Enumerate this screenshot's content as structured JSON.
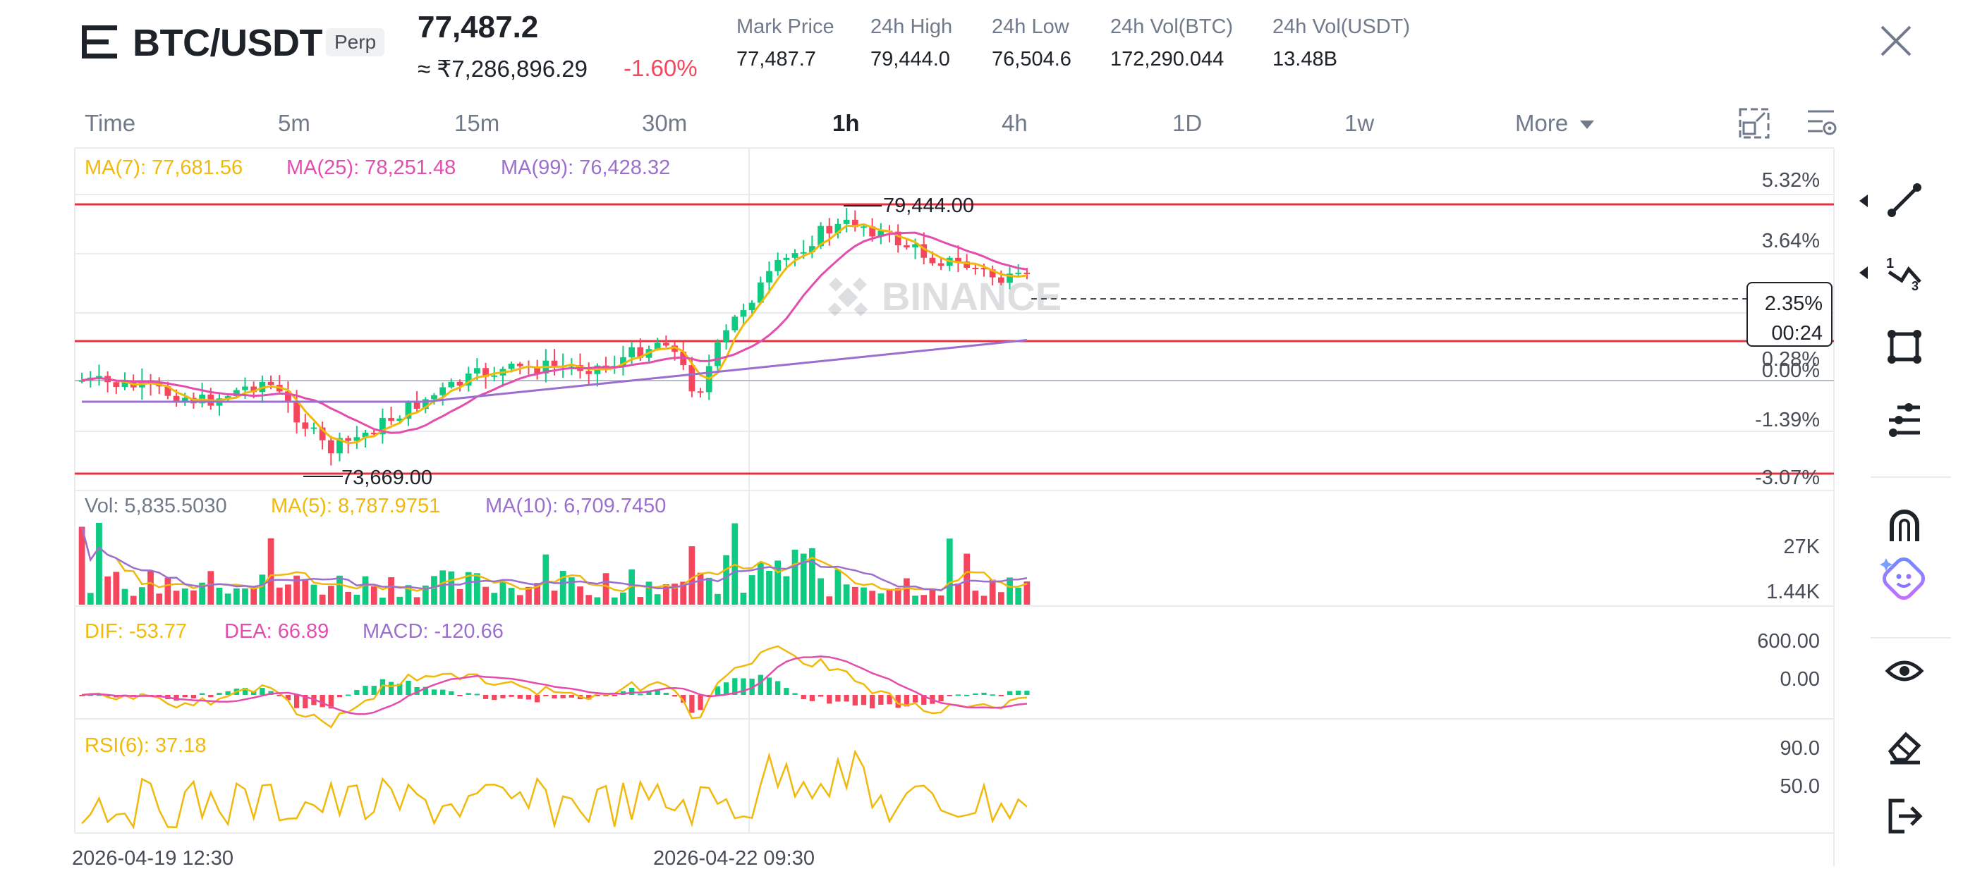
{
  "header": {
    "pair": "BTC/USDT",
    "badge": "Perp",
    "last_price": "77,487.2",
    "inr_price": "≈ ₹7,286,896.29",
    "change": "-1.60%",
    "stats": [
      {
        "label": "Mark Price",
        "value": "77,487.7"
      },
      {
        "label": "24h High",
        "value": "79,444.0"
      },
      {
        "label": "24h Low",
        "value": "76,504.6"
      },
      {
        "label": "24h Vol(BTC)",
        "value": "172,290.044"
      },
      {
        "label": "24h Vol(USDT)",
        "value": "13.48B"
      }
    ]
  },
  "tabs": [
    {
      "label": "Time",
      "active": false
    },
    {
      "label": "5m",
      "active": false
    },
    {
      "label": "15m",
      "active": false
    },
    {
      "label": "30m",
      "active": false
    },
    {
      "label": "1h",
      "active": true
    },
    {
      "label": "4h",
      "active": false
    },
    {
      "label": "1D",
      "active": false
    },
    {
      "label": "1w",
      "active": false
    },
    {
      "label": "More",
      "active": false
    }
  ],
  "main_chart": {
    "legend": {
      "ma7": "MA(7): 77,681.56",
      "ma25": "MA(25): 78,251.48",
      "ma99": "MA(99): 76,428.32"
    },
    "high_label": "79,444.00",
    "low_label": "73,669.00",
    "watermark": "BINANCE",
    "price_tag_pct": "2.35%",
    "price_tag_time": "00:24",
    "y_ticks": [
      "5.32%",
      "3.64%",
      "0.28%",
      "0.00%",
      "-1.39%",
      "-3.07%"
    ]
  },
  "volume": {
    "legend": {
      "vol": "Vol: 5,835.5030",
      "ma5": "MA(5): 8,787.9751",
      "ma10": "MA(10): 6,709.7450"
    },
    "y_ticks": [
      "27K",
      "1.44K"
    ]
  },
  "macd": {
    "legend": {
      "dif": "DIF: -53.77",
      "dea": "DEA: 66.89",
      "macd": "MACD: -120.66"
    },
    "y_ticks": [
      "600.00",
      "0.00"
    ]
  },
  "rsi": {
    "legend": {
      "rsi": "RSI(6): 37.18"
    },
    "y_ticks": [
      "90.0",
      "50.0"
    ]
  },
  "x_axis": [
    "2026-04-19 12:30",
    "2026-04-22 09:30"
  ],
  "sidebar_icons": [
    "trend-line-icon",
    "fib-icon",
    "rectangle-icon",
    "settings-lines-icon",
    "magnet-icon",
    "ai-assistant-icon",
    "eye-icon",
    "eraser-icon",
    "exit-icon"
  ],
  "colors": {
    "up": "#0ecb81",
    "down": "#f6465d",
    "ma7": "#f0b90b",
    "ma25": "#e34dae",
    "ma99": "#9b6fcf",
    "hline": "#e8333f"
  }
}
